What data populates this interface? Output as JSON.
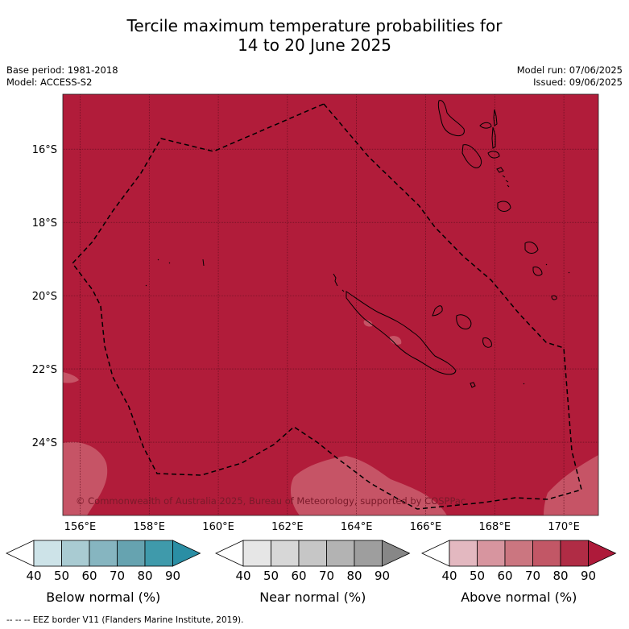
{
  "title": {
    "line1": "Tercile maximum temperature probabilities for",
    "line2": "14 to 20 June 2025"
  },
  "meta_left": {
    "base_period": "Base period: 1981-2018",
    "model": "Model: ACCESS-S2"
  },
  "meta_right": {
    "model_run": "Model run: 07/06/2025",
    "issued": "Issued: 09/06/2025"
  },
  "map": {
    "lon_labels": [
      "156°E",
      "158°E",
      "160°E",
      "162°E",
      "164°E",
      "166°E",
      "168°E",
      "170°E"
    ],
    "lat_labels": [
      "16°S",
      "18°S",
      "20°S",
      "22°S",
      "24°S"
    ],
    "lon_range": [
      155.5,
      171.0
    ],
    "lat_range": [
      -26.0,
      -14.5
    ],
    "dominant_category": "Above normal 80-90%",
    "background_color": "#b11c3a",
    "lighter_color": "#c65466",
    "copyright": "© Commonwealth of Australia 2025, Bureau of Meteorology, supported by COSPPac"
  },
  "colorbars": [
    {
      "label": "Below normal (%)",
      "ticks": [
        "40",
        "50",
        "60",
        "70",
        "80",
        "90"
      ],
      "colors": [
        "#ffffff",
        "#cde3e8",
        "#a9cbd2",
        "#86b5c0",
        "#66a3b0",
        "#3f9aab",
        "#2a8ea4"
      ]
    },
    {
      "label": "Near normal (%)",
      "ticks": [
        "40",
        "50",
        "60",
        "70",
        "80",
        "90"
      ],
      "colors": [
        "#ffffff",
        "#e6e6e6",
        "#d7d7d7",
        "#c6c6c6",
        "#b3b3b3",
        "#9e9e9e",
        "#878787"
      ]
    },
    {
      "label": "Above normal (%)",
      "ticks": [
        "40",
        "50",
        "60",
        "70",
        "80",
        "90"
      ],
      "colors": [
        "#ffffff",
        "#e3b8c0",
        "#d7959f",
        "#cb7680",
        "#c25766",
        "#b02c45",
        "#ae1a3a"
      ]
    }
  ],
  "footer": "--  --  -- EEZ border V11 (Flanders Marine Institute, 2019)."
}
